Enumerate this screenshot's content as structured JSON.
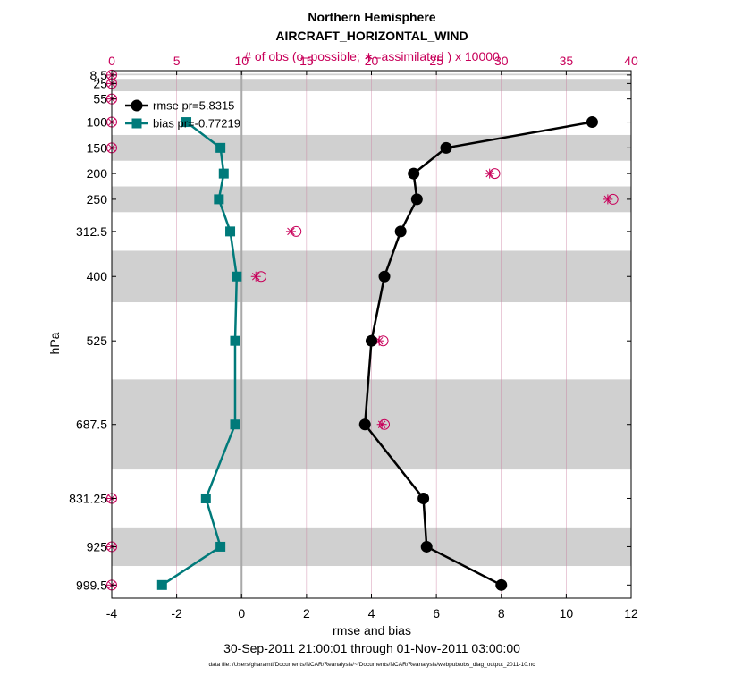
{
  "chart_data": {
    "type": "line",
    "title_line1": "Northern Hemisphere",
    "title_line2": "AIRCRAFT_HORIZONTAL_WIND",
    "top_axis_label": "# of obs (o=possible; ∗=assimilated ) x 10000",
    "xlabel": "rmse and bias",
    "ylabel": "hPa",
    "date_range": "30-Sep-2011 21:00:01 through 01-Nov-2011 03:00:00",
    "footer": "data file: /Users/gharamti/Documents/NCAR/Reanalysis/~/Documents/NCAR/Reanalysis/webpub/obs_diag_output_2011-10.nc",
    "xlim": [
      -4,
      12
    ],
    "x_ticks": [
      -4,
      -2,
      0,
      2,
      4,
      6,
      8,
      10,
      12
    ],
    "top_xlim": [
      0,
      40
    ],
    "top_ticks": [
      0,
      5,
      10,
      15,
      20,
      25,
      30,
      35,
      40
    ],
    "ylim": [
      0,
      1025
    ],
    "levels": [
      8.5,
      25,
      55,
      100,
      150,
      200,
      250,
      312.5,
      400,
      525,
      687.5,
      831.25,
      925,
      999.5
    ],
    "level_labels": [
      "8.5",
      "25",
      "55",
      "100",
      "150",
      "200",
      "250",
      "312.5",
      "400",
      "525",
      "687.5",
      "831.25",
      "925",
      "999.5"
    ],
    "shaded_bands": [
      [
        6,
        9
      ],
      [
        16,
        40
      ],
      [
        125,
        175
      ],
      [
        225,
        275
      ],
      [
        350,
        450
      ],
      [
        600,
        775
      ],
      [
        887.5,
        962.5
      ]
    ],
    "series": [
      {
        "name": "rmse pr=5.8315",
        "color": "#000000",
        "marker": "circle",
        "levels": [
          100,
          150,
          200,
          250,
          312.5,
          400,
          525,
          687.5,
          831.25,
          925,
          999.5
        ],
        "values": [
          10.8,
          6.3,
          5.3,
          5.4,
          4.9,
          4.4,
          4.0,
          3.8,
          5.6,
          5.7,
          8.0
        ]
      },
      {
        "name": "bias pr=-0.77219",
        "color": "#007a7a",
        "marker": "square",
        "levels": [
          100,
          150,
          200,
          250,
          312.5,
          400,
          525,
          687.5,
          831.25,
          925,
          999.5
        ],
        "values": [
          -1.7,
          -0.65,
          -0.55,
          -0.7,
          -0.35,
          -0.15,
          -0.2,
          -0.2,
          -1.1,
          -0.65,
          -2.45
        ]
      }
    ],
    "obs_counts": {
      "levels": [
        8.5,
        25,
        55,
        100,
        150,
        200,
        250,
        312.5,
        400,
        525,
        687.5,
        831.25,
        925,
        999.5
      ],
      "possible": [
        0,
        0,
        0,
        0,
        0,
        29.5,
        38.6,
        14.2,
        11.5,
        20.9,
        21.0,
        0,
        0,
        0
      ],
      "assimilated": [
        0,
        0,
        0,
        0,
        0,
        29.1,
        38.2,
        13.8,
        11.1,
        20.6,
        20.8,
        0,
        0,
        0
      ]
    },
    "colors": {
      "obs": "#c8005a",
      "band": "#d0d0d0",
      "zero_line": "#a9a9a9",
      "grid": "#c97a9e"
    }
  }
}
